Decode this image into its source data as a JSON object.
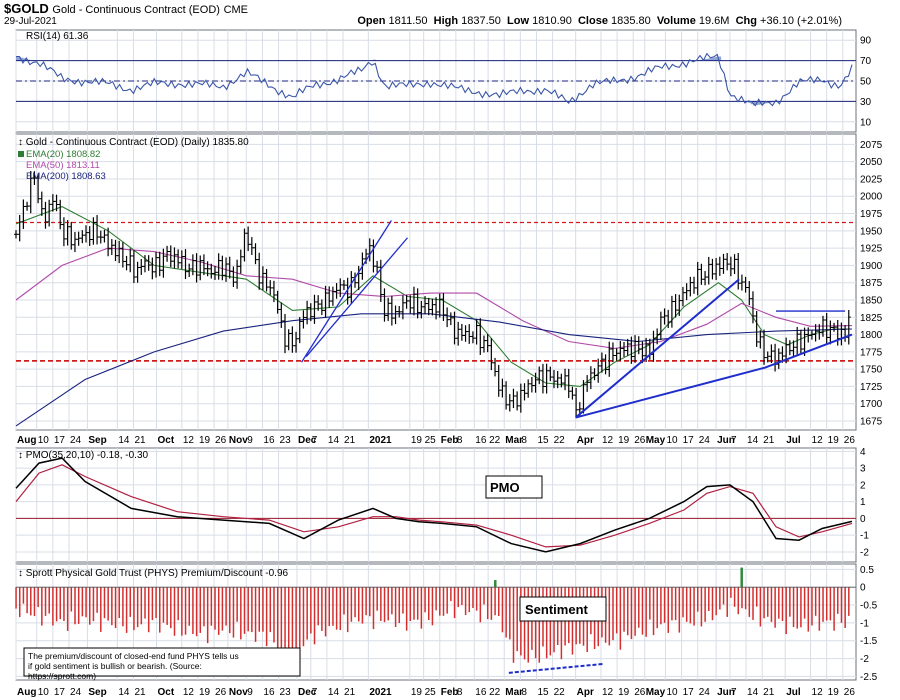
{
  "header": {
    "symbol": "$GOLD",
    "name": "Gold - Continuous Contract (EOD)",
    "exchange": "CME",
    "date": "29-Jul-2021",
    "open_label": "Open",
    "open": "1811.50",
    "high_label": "High",
    "high": "1837.50",
    "low_label": "Low",
    "low": "1810.90",
    "close_label": "Close",
    "close": "1835.80",
    "volume_label": "Volume",
    "volume": "19.6M",
    "chg_label": "Chg",
    "chg": "+36.10 (+2.01%)"
  },
  "colors": {
    "background": "#ffffff",
    "grid": "#d8dde6",
    "price": "#000000",
    "ema20": "#2e7d32",
    "ema50": "#b04aa8",
    "ema200": "#1a237e",
    "rsi": "#3a56a8",
    "pmo": "#000000",
    "pmo_signal": "#b02040",
    "trend": "#1f2dcc",
    "support": "#d21a1a",
    "bar_neg": "#d32f2f",
    "bar_pos": "#2e8b3a"
  },
  "x_axis": {
    "ticks": [
      {
        "label": "Aug",
        "bold": true,
        "day": 0
      },
      {
        "label": "10",
        "day": 9
      },
      {
        "label": "17",
        "day": 16
      },
      {
        "label": "24",
        "day": 23
      },
      {
        "label": "Sep",
        "bold": true,
        "day": 31
      },
      {
        "label": "14",
        "day": 44
      },
      {
        "label": "21",
        "day": 51
      },
      {
        "label": "Oct",
        "bold": true,
        "day": 61
      },
      {
        "label": "12",
        "day": 72
      },
      {
        "label": "19",
        "day": 79
      },
      {
        "label": "26",
        "day": 86
      },
      {
        "label": "Nov",
        "bold": true,
        "day": 92
      },
      {
        "label": "9",
        "day": 100
      },
      {
        "label": "16",
        "day": 107
      },
      {
        "label": "23",
        "day": 114
      },
      {
        "label": "Dec",
        "bold": true,
        "day": 122
      },
      {
        "label": "7",
        "day": 128
      },
      {
        "label": "14",
        "day": 135
      },
      {
        "label": "21",
        "day": 142
      },
      {
        "label": "2021",
        "bold": true,
        "day": 153
      },
      {
        "label": "19",
        "day": 171
      },
      {
        "label": "25",
        "day": 177
      },
      {
        "label": "Feb",
        "bold": true,
        "day": 184
      },
      {
        "label": "8",
        "day": 191
      },
      {
        "label": "16",
        "day": 199
      },
      {
        "label": "22",
        "day": 205
      },
      {
        "label": "Mar",
        "bold": true,
        "day": 212
      },
      {
        "label": "8",
        "day": 219
      },
      {
        "label": "15",
        "day": 226
      },
      {
        "label": "22",
        "day": 233
      },
      {
        "label": "Apr",
        "bold": true,
        "day": 243
      },
      {
        "label": "12",
        "day": 254
      },
      {
        "label": "19",
        "day": 261
      },
      {
        "label": "26",
        "day": 268
      },
      {
        "label": "May",
        "bold": true,
        "day": 273
      },
      {
        "label": "10",
        "day": 282
      },
      {
        "label": "17",
        "day": 289
      },
      {
        "label": "24",
        "day": 296
      },
      {
        "label": "Jun",
        "bold": true,
        "day": 304
      },
      {
        "label": "7",
        "day": 310
      },
      {
        "label": "14",
        "day": 317
      },
      {
        "label": "21",
        "day": 324
      },
      {
        "label": "Jul",
        "bold": true,
        "day": 334
      },
      {
        "label": "12",
        "day": 345
      },
      {
        "label": "19",
        "day": 352
      },
      {
        "label": "26",
        "day": 359
      }
    ],
    "start_date": "2021-07-29",
    "end_day": 363
  },
  "chart_data": [
    {
      "type": "line",
      "title": "RSI(14) 61.36",
      "y_ticks": [
        10,
        30,
        50,
        70,
        90
      ],
      "ylim": [
        0,
        100
      ],
      "overbought": 70,
      "midline": 50,
      "oversold": 30,
      "x": [
        0,
        10,
        20,
        30,
        40,
        50,
        60,
        70,
        80,
        90,
        100,
        110,
        120,
        130,
        140,
        150,
        155,
        160,
        170,
        180,
        190,
        200,
        210,
        220,
        230,
        240,
        250,
        260,
        270,
        280,
        290,
        300,
        305,
        310,
        320,
        330,
        340,
        350,
        358,
        363
      ],
      "values": [
        74,
        68,
        52,
        50,
        47,
        42,
        47,
        48,
        46,
        45,
        58,
        46,
        34,
        46,
        52,
        60,
        71,
        46,
        45,
        49,
        43,
        40,
        35,
        42,
        40,
        30,
        46,
        50,
        55,
        63,
        68,
        72,
        74,
        38,
        26,
        30,
        48,
        52,
        45,
        61
      ]
    },
    {
      "type": "line",
      "title": "Gold - Continuous Contract (EOD) (Daily) 1835.80",
      "y_ticks": [
        1675,
        1700,
        1725,
        1750,
        1775,
        1800,
        1825,
        1850,
        1875,
        1900,
        1925,
        1950,
        1975,
        2000,
        2025,
        2050,
        2075
      ],
      "ylim": [
        1662,
        2090
      ],
      "series": [
        {
          "name": "EMA(20) 1808.82",
          "x": [
            0,
            20,
            40,
            60,
            80,
            100,
            120,
            140,
            155,
            170,
            185,
            200,
            215,
            230,
            245,
            260,
            275,
            290,
            305,
            315,
            325,
            335,
            345,
            355,
            363
          ],
          "values": [
            1960,
            1985,
            1950,
            1900,
            1890,
            1880,
            1835,
            1840,
            1885,
            1855,
            1850,
            1820,
            1760,
            1730,
            1725,
            1760,
            1785,
            1840,
            1875,
            1850,
            1800,
            1785,
            1800,
            1808,
            1808
          ]
        },
        {
          "name": "EMA(50) 1813.11",
          "x": [
            0,
            20,
            40,
            60,
            80,
            100,
            120,
            140,
            160,
            180,
            200,
            220,
            240,
            260,
            280,
            300,
            315,
            330,
            345,
            363
          ],
          "values": [
            1850,
            1900,
            1925,
            1920,
            1905,
            1885,
            1880,
            1860,
            1855,
            1860,
            1860,
            1820,
            1790,
            1780,
            1790,
            1815,
            1845,
            1825,
            1812,
            1813
          ]
        },
        {
          "name": "EMA(200) 1808.63",
          "x": [
            0,
            30,
            60,
            90,
            120,
            150,
            180,
            210,
            240,
            270,
            300,
            330,
            363
          ],
          "values": [
            1668,
            1735,
            1775,
            1805,
            1820,
            1830,
            1830,
            1818,
            1800,
            1790,
            1800,
            1805,
            1808
          ]
        }
      ],
      "ohlc_close": {
        "x": [
          0,
          5,
          8,
          12,
          16,
          20,
          25,
          30,
          35,
          40,
          45,
          50,
          52,
          56,
          60,
          65,
          70,
          75,
          80,
          85,
          90,
          95,
          100,
          105,
          108,
          112,
          116,
          120,
          125,
          130,
          135,
          140,
          145,
          150,
          153,
          156,
          160,
          165,
          170,
          175,
          180,
          185,
          190,
          195,
          200,
          205,
          210,
          215,
          220,
          225,
          230,
          235,
          240,
          243,
          248,
          255,
          260,
          265,
          270,
          275,
          280,
          285,
          290,
          295,
          300,
          305,
          310,
          312,
          315,
          318,
          322,
          326,
          330,
          335,
          340,
          345,
          350,
          355,
          360,
          363
        ],
        "values": [
          1945,
          2000,
          2030,
          1960,
          2000,
          1950,
          1935,
          1945,
          1950,
          1930,
          1915,
          1900,
          1890,
          1905,
          1895,
          1915,
          1910,
          1895,
          1900,
          1890,
          1900,
          1880,
          1950,
          1890,
          1875,
          1860,
          1800,
          1785,
          1830,
          1840,
          1850,
          1870,
          1865,
          1900,
          1930,
          1900,
          1835,
          1830,
          1850,
          1840,
          1840,
          1840,
          1805,
          1800,
          1800,
          1780,
          1720,
          1700,
          1715,
          1735,
          1740,
          1735,
          1730,
          1685,
          1735,
          1760,
          1775,
          1780,
          1780,
          1775,
          1820,
          1835,
          1860,
          1880,
          1890,
          1900,
          1905,
          1895,
          1875,
          1860,
          1790,
          1770,
          1765,
          1780,
          1790,
          1800,
          1810,
          1805,
          1800,
          1835
        ]
      },
      "resistance": 1962,
      "support": 1762,
      "trendlines": [
        {
          "x": [
            124,
            163
          ],
          "values": [
            1760,
            1965
          ]
        },
        {
          "x": [
            126,
            170
          ],
          "values": [
            1768,
            1940
          ]
        },
        {
          "x": [
            243,
            314
          ],
          "values": [
            1680,
            1880
          ]
        },
        {
          "x": [
            243,
            325
          ],
          "values": [
            1680,
            1752
          ]
        },
        {
          "x": [
            325,
            363
          ],
          "values": [
            1752,
            1800
          ]
        },
        {
          "x": [
            330,
            360
          ],
          "values": [
            1834,
            1834
          ]
        }
      ]
    },
    {
      "type": "line",
      "title": "PMO(35,20,10) -0.18, -0.30",
      "y_ticks": [
        -2,
        -1,
        0,
        1,
        2,
        3,
        4
      ],
      "ylim": [
        -2.6,
        4.2
      ],
      "zero_line": 0,
      "label": "PMO",
      "series": [
        {
          "name": "PMO",
          "x": [
            0,
            10,
            20,
            30,
            50,
            70,
            90,
            110,
            125,
            140,
            155,
            165,
            175,
            185,
            200,
            215,
            230,
            245,
            260,
            275,
            290,
            300,
            310,
            320,
            330,
            340,
            350,
            363
          ],
          "values": [
            1.8,
            3.3,
            3.6,
            2.2,
            0.6,
            0.1,
            -0.1,
            -0.3,
            -1.2,
            -0.1,
            0.6,
            0.0,
            -0.2,
            -0.3,
            -0.5,
            -1.5,
            -2.0,
            -1.5,
            -0.7,
            0.0,
            1.0,
            1.9,
            2.0,
            1.0,
            -1.2,
            -1.3,
            -0.6,
            -0.18
          ]
        },
        {
          "name": "Signal",
          "x": [
            0,
            10,
            20,
            30,
            50,
            70,
            90,
            110,
            125,
            140,
            155,
            165,
            175,
            185,
            200,
            215,
            230,
            245,
            260,
            275,
            290,
            300,
            310,
            320,
            330,
            340,
            350,
            363
          ],
          "values": [
            1.0,
            2.7,
            3.2,
            2.5,
            1.3,
            0.4,
            0.1,
            -0.1,
            -0.8,
            -0.5,
            0.1,
            0.1,
            -0.1,
            -0.2,
            -0.4,
            -1.0,
            -1.7,
            -1.6,
            -1.0,
            -0.3,
            0.5,
            1.5,
            1.9,
            1.5,
            -0.5,
            -1.1,
            -0.8,
            -0.3
          ]
        }
      ]
    },
    {
      "type": "bar",
      "title": "Sprott Physical Gold Trust (PHYS) Premium/Discount -0.96",
      "y_ticks": [
        -2.5,
        -2.0,
        -1.5,
        -1.0,
        -0.5,
        0.0,
        0.5
      ],
      "ylim": [
        -2.6,
        0.65
      ],
      "label": "Sentiment",
      "note": "The premium/discount of closed-end fund PHYS tells us if gold sentiment is bullish or bearish. (Source: https://sprott.com)",
      "x": [
        0,
        10,
        20,
        30,
        40,
        50,
        60,
        70,
        80,
        90,
        100,
        110,
        120,
        125,
        130,
        140,
        150,
        160,
        170,
        180,
        190,
        200,
        210,
        215,
        220,
        230,
        240,
        250,
        260,
        270,
        280,
        290,
        300,
        305,
        310,
        320,
        330,
        340,
        350,
        363
      ],
      "values": [
        -0.6,
        -0.8,
        -1.0,
        -0.9,
        -1.0,
        -1.1,
        -1.0,
        -1.2,
        -1.3,
        -1.2,
        -1.3,
        -1.4,
        -2.2,
        -1.6,
        -1.3,
        -1.1,
        -0.9,
        -0.9,
        -1.0,
        -0.9,
        -0.6,
        -0.7,
        -0.9,
        -1.8,
        -2.0,
        -1.9,
        -1.7,
        -1.6,
        -1.5,
        -1.3,
        -1.1,
        -1.0,
        -0.9,
        -0.7,
        -0.5,
        -0.8,
        -1.0,
        -1.1,
        -1.0,
        -0.96
      ],
      "positive_spikes": [
        {
          "x": 208,
          "value": 0.2
        },
        {
          "x": 315,
          "value": 0.55
        }
      ],
      "sentiment_trend": {
        "x": [
          214,
          255
        ],
        "values": [
          -2.4,
          -2.15
        ]
      }
    }
  ]
}
